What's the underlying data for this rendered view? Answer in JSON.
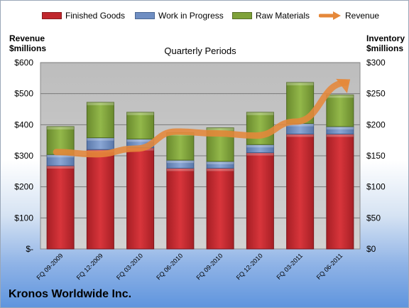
{
  "page": {
    "title": "Kronos Worldwide Inc."
  },
  "legend": {
    "finished_goods": "Finished Goods",
    "work_in_progress": "Work in Progress",
    "raw_materials": "Raw Materials",
    "revenue": "Revenue"
  },
  "axes": {
    "left_title_line1": "Revenue",
    "left_title_line2": "$millions",
    "right_title_line1": "Inventory",
    "right_title_line2": "$millions"
  },
  "colors": {
    "finished_goods": "#c0272d",
    "work_in_progress": "#6f8ec2",
    "raw_materials": "#7fa23a",
    "revenue": "#e5883a",
    "plot_bg": "#c6c6c6"
  },
  "chart_data": {
    "type": "bar",
    "subtitle": "Quarterly Periods",
    "categories": [
      "FQ 09-2009",
      "FQ 12-2009",
      "FQ 03-2010",
      "FQ 06-2010",
      "FQ 09-2010",
      "FQ 12-2010",
      "FQ 03-2011",
      "FQ 06-2011"
    ],
    "stacked": true,
    "series": [
      {
        "name": "Finished Goods",
        "axis": "right",
        "values": [
          134,
          160,
          163,
          130,
          130,
          155,
          185,
          185
        ]
      },
      {
        "name": "Work in Progress",
        "axis": "right",
        "values": [
          18,
          19,
          14,
          13,
          11,
          13,
          17,
          12
        ]
      },
      {
        "name": "Raw Materials",
        "axis": "right",
        "values": [
          45,
          57,
          43,
          44,
          54,
          52,
          66,
          51
        ]
      }
    ],
    "line_series": {
      "name": "Revenue",
      "axis": "left",
      "values": [
        312,
        305,
        323,
        378,
        372,
        365,
        410,
        535
      ]
    },
    "left_axis": {
      "ylim": [
        0,
        600
      ],
      "ticks": [
        0,
        100,
        200,
        300,
        400,
        500,
        600
      ],
      "tick_labels": [
        "$-",
        "$100",
        "$200",
        "$300",
        "$400",
        "$500",
        "$600"
      ]
    },
    "right_axis": {
      "ylim": [
        0,
        300
      ],
      "ticks": [
        0,
        50,
        100,
        150,
        200,
        250,
        300
      ],
      "tick_labels": [
        "$0",
        "$50",
        "$100",
        "$150",
        "$200",
        "$250",
        "$300"
      ]
    },
    "grid": true,
    "legend_position": "top"
  }
}
